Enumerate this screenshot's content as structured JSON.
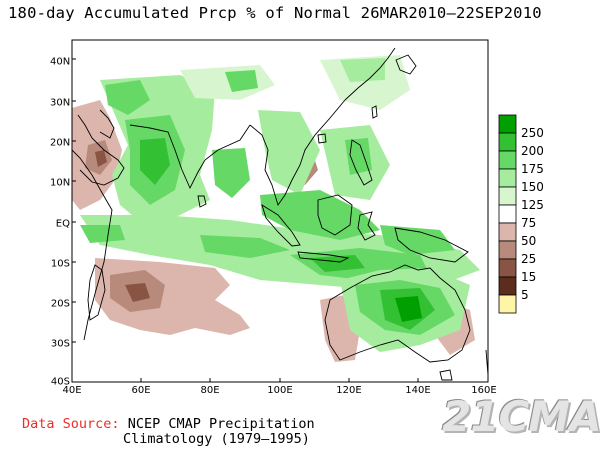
{
  "title": "180-day Accumulated Prcp % of Normal 26MAR2010–22SEP2010",
  "map": {
    "lat_labels": [
      "40N",
      "30N",
      "20N",
      "10N",
      "EQ",
      "10S",
      "20S",
      "30S",
      "40S"
    ],
    "lat_values": [
      40,
      30,
      20,
      10,
      0,
      -10,
      -20,
      -30,
      -40
    ],
    "lon_labels": [
      "40E",
      "60E",
      "80E",
      "100E",
      "120E",
      "140E",
      "160E"
    ],
    "lon_values": [
      40,
      60,
      80,
      100,
      120,
      140,
      160
    ],
    "lat_range": [
      -40,
      45
    ],
    "lon_range": [
      40,
      160
    ]
  },
  "legend": {
    "levels": [
      "250",
      "200",
      "175",
      "150",
      "125",
      "75",
      "50",
      "25",
      "15",
      "5"
    ],
    "colors": {
      "above_250": "#00a000",
      "200_250": "#33c133",
      "175_200": "#66d866",
      "150_175": "#a6ec9e",
      "125_150": "#d7f6d0",
      "75_125": "#ffffff",
      "50_75": "#dcb6ac",
      "25_50": "#b88a7c",
      "15_25": "#8a5444",
      "5_15": "#5c2c1e",
      "below_5": "#fff5a6"
    }
  },
  "source": {
    "label": "Data Source:",
    "line1": "NCEP CMAP Precipitation",
    "line2": "Climatology (1979–1995)"
  },
  "watermark": "21CMA"
}
